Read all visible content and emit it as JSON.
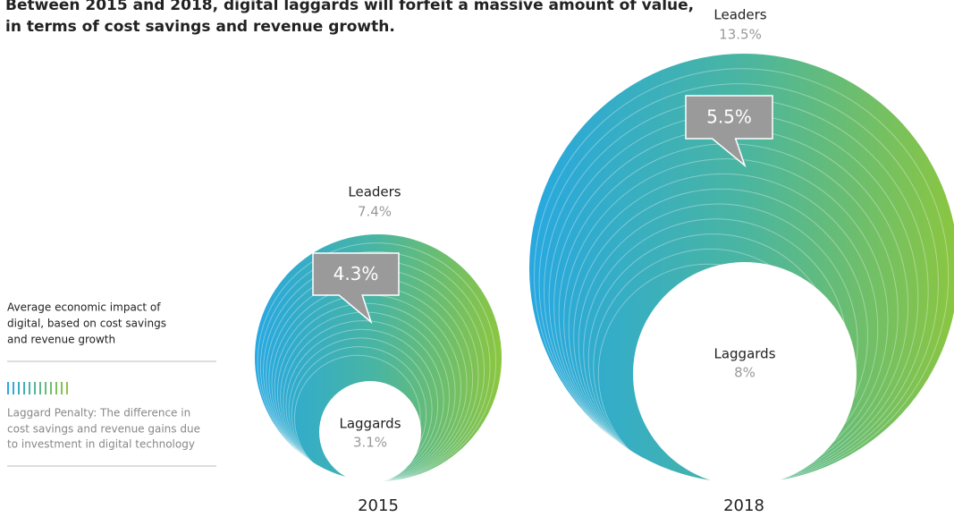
{
  "header": {
    "title": [
      "Between 2015 and 2018, digital laggards will forfeit a massive amount of value,",
      "in terms of cost savings and revenue growth."
    ]
  },
  "legend": {
    "description": [
      "Average economic impact of",
      "digital, based on cost savings",
      "and revenue growth"
    ],
    "note": [
      "Laggard Penalty: The difference in",
      "cost savings and revenue gains due",
      "to investment in digital technology"
    ]
  },
  "circles": [
    {
      "year": "2015",
      "leaders_label": "Leaders",
      "leaders_value": "7.4%",
      "penalty": "4.3%",
      "laggards_label": "Laggards",
      "laggards_value": "3.1%"
    },
    {
      "year": "2018",
      "leaders_label": "Leaders",
      "leaders_value": "13.5%",
      "penalty": "5.5%",
      "laggards_label": "Laggards",
      "laggards_value": "8%"
    }
  ]
}
